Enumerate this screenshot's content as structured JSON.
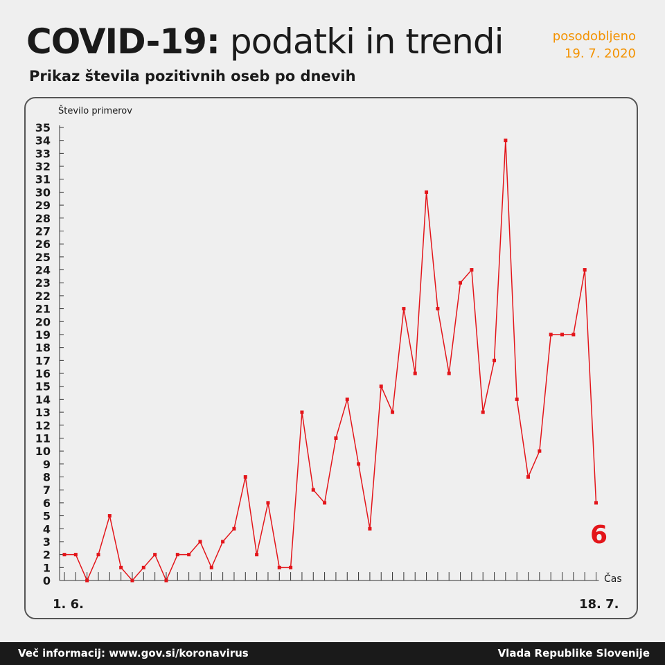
{
  "header": {
    "title_bold": "COVID-19:",
    "title_light": "podatki in trendi",
    "updated_label": "posodobljeno",
    "updated_date": "19. 7. 2020",
    "subtitle": "Prikaz števila pozitivnih oseb po dnevih"
  },
  "footer": {
    "left": "Več informacij: www.gov.si/koronavirus",
    "right": "Vlada Republike Slovenije"
  },
  "colors": {
    "accent_orange": "#f39200",
    "line_red": "#e3151a",
    "text_dark": "#1a1a1a",
    "background": "#efefef",
    "footer_bg": "#1a1a1a"
  },
  "chart_data": {
    "type": "line",
    "title": "Prikaz števila pozitivnih oseb po dnevih",
    "xlabel": "Čas",
    "ylabel": "Število primerov",
    "x_start_label": "1. 6.",
    "x_end_label": "18. 7.",
    "last_value_label": "6",
    "ylim": [
      0,
      35
    ],
    "y_ticks": [
      0,
      1,
      2,
      3,
      4,
      5,
      6,
      7,
      8,
      9,
      10,
      11,
      12,
      13,
      14,
      15,
      16,
      17,
      18,
      19,
      20,
      21,
      22,
      23,
      24,
      25,
      26,
      27,
      28,
      29,
      30,
      31,
      32,
      33,
      34,
      35
    ],
    "grid": false,
    "series": [
      {
        "values": [
          2,
          2,
          0,
          2,
          5,
          1,
          0,
          1,
          2,
          0,
          2,
          2,
          3,
          1,
          3,
          4,
          8,
          2,
          6,
          1,
          1,
          13,
          7,
          6,
          11,
          14,
          9,
          4,
          15,
          13,
          21,
          16,
          30,
          21,
          16,
          23,
          24,
          13,
          17,
          34,
          14,
          8,
          10,
          19,
          19,
          19,
          24,
          6
        ]
      }
    ]
  }
}
